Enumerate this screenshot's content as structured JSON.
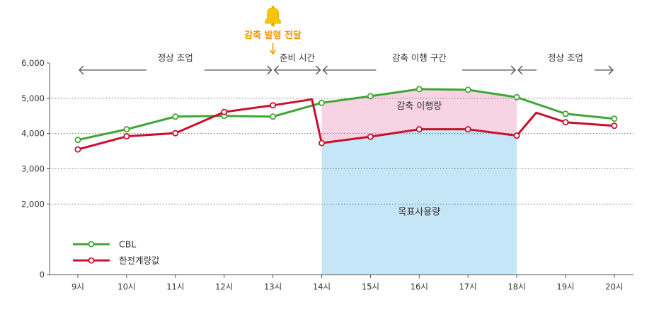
{
  "chart_data": {
    "type": "line",
    "categories": [
      "9시",
      "10시",
      "11시",
      "12시",
      "13시",
      "14시",
      "15시",
      "16시",
      "17시",
      "18시",
      "19시",
      "20시"
    ],
    "y_ticks": [
      "6,000",
      "5,000",
      "4,000",
      "3,000",
      "2,000",
      "0"
    ],
    "ylim": [
      0,
      6000
    ],
    "grid": true,
    "legend_position": "bottom-left",
    "series": [
      {
        "name": "CBL",
        "color": "#3fa535",
        "x": [
          9,
          10,
          11,
          12,
          13,
          14,
          15,
          16,
          17,
          18,
          19,
          20
        ],
        "values": [
          3820,
          4120,
          4480,
          4500,
          4480,
          4870,
          5060,
          5260,
          5240,
          5030,
          4560,
          4420
        ]
      },
      {
        "name": "한전계량값",
        "color": "#c8102e",
        "x": [
          9,
          10,
          11,
          12,
          13,
          13.8,
          14,
          15,
          16,
          17,
          18,
          18.4,
          19,
          20
        ],
        "values": [
          3550,
          3920,
          4010,
          4610,
          4800,
          4970,
          3730,
          3910,
          4120,
          4120,
          3940,
          4590,
          4320,
          4220
        ],
        "markers": [
          true,
          true,
          true,
          true,
          true,
          false,
          true,
          true,
          true,
          true,
          true,
          false,
          true,
          true
        ]
      }
    ],
    "periods": [
      {
        "label": "정상 조업",
        "from": 9,
        "to": 13
      },
      {
        "label": "준비 시간",
        "from": 13,
        "to": 14
      },
      {
        "label": "감축 이행 구간",
        "from": 14,
        "to": 18
      },
      {
        "label": "정상 조업",
        "from": 18,
        "to": 20
      }
    ],
    "areas": {
      "reduction_label": "감축 이행량",
      "reduction_color": "#f8d3e4",
      "target_label": "목표사용량",
      "target_color": "#c5e6f7"
    },
    "alert": {
      "label": "감축 발령 전달",
      "x": 13,
      "color": "#f29400",
      "icon": "bell-icon"
    }
  }
}
